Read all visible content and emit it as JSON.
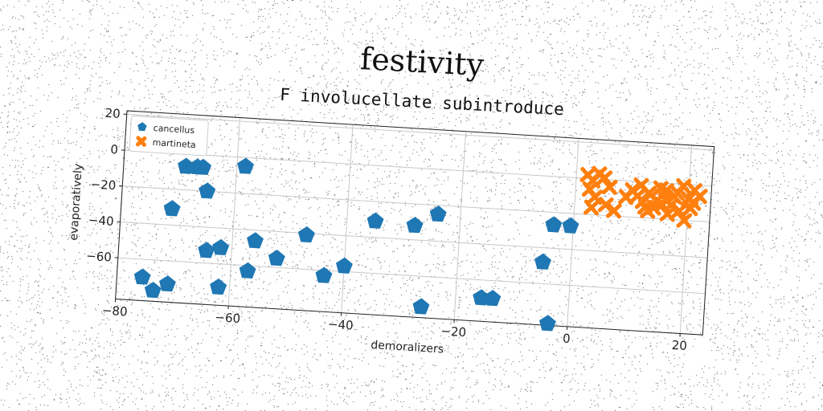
{
  "chart_data": {
    "type": "scatter",
    "title": "festivity",
    "subtitle": "F involucellate subintroduce",
    "xlabel": "demoralizers",
    "ylabel": "evaporatively",
    "xlim": [
      -80,
      24
    ],
    "ylim": [
      -83,
      22
    ],
    "xticks": [
      -80,
      -60,
      -40,
      -20,
      0,
      20
    ],
    "yticks": [
      20,
      0,
      -20,
      -40,
      -60
    ],
    "grid": true,
    "legend_position": "top-left",
    "series": [
      {
        "name": "cancellus",
        "marker": "pentagon",
        "color": "#1f77b4",
        "points": [
          [
            -69,
            -7
          ],
          [
            -67,
            -7
          ],
          [
            -66,
            -7
          ],
          [
            -58.5,
            -5
          ],
          [
            -65,
            -20
          ],
          [
            -71,
            -31
          ],
          [
            -64.5,
            -53
          ],
          [
            -62,
            -51
          ],
          [
            -56,
            -46
          ],
          [
            -52,
            -55
          ],
          [
            -47,
            -41
          ],
          [
            -57,
            -63
          ],
          [
            -62,
            -73
          ],
          [
            -73.5,
            -77
          ],
          [
            -75.5,
            -70
          ],
          [
            -71,
            -73
          ],
          [
            -43.5,
            -63
          ],
          [
            -40,
            -57
          ],
          [
            -35,
            -31
          ],
          [
            -28,
            -32
          ],
          [
            -24,
            -25
          ],
          [
            -26,
            -77
          ],
          [
            -15.5,
            -70
          ],
          [
            -13.5,
            -70
          ],
          [
            -5,
            -48
          ],
          [
            -3.5,
            -27
          ],
          [
            -0.5,
            -27
          ],
          [
            -3.5,
            -82
          ]
        ]
      },
      {
        "name": "martineta",
        "marker": "x",
        "color": "#ff7f0e",
        "points": [
          [
            2,
            2
          ],
          [
            3,
            -1
          ],
          [
            4,
            3
          ],
          [
            5,
            1
          ],
          [
            2.5,
            -6
          ],
          [
            6,
            -4
          ],
          [
            3.5,
            -10
          ],
          [
            5.5,
            -14
          ],
          [
            3,
            -16
          ],
          [
            7,
            -17
          ],
          [
            10,
            -5
          ],
          [
            11,
            -8
          ],
          [
            12,
            -11
          ],
          [
            13,
            -6
          ],
          [
            14,
            -14
          ],
          [
            15,
            -3
          ],
          [
            16,
            -9
          ],
          [
            17,
            -12
          ],
          [
            18,
            -5
          ],
          [
            19,
            -1
          ],
          [
            20,
            -8
          ],
          [
            21,
            -3
          ],
          [
            22,
            -6
          ],
          [
            13,
            -16
          ],
          [
            15.5,
            -12
          ],
          [
            16.5,
            -17
          ],
          [
            18.5,
            -15
          ],
          [
            19.5,
            -20
          ],
          [
            11.5,
            -2
          ],
          [
            14.5,
            -10
          ],
          [
            17.5,
            -7
          ],
          [
            20.5,
            -13
          ],
          [
            9,
            -9
          ],
          [
            12.5,
            -14
          ],
          [
            16,
            -4
          ],
          [
            21,
            -10
          ]
        ]
      }
    ]
  }
}
